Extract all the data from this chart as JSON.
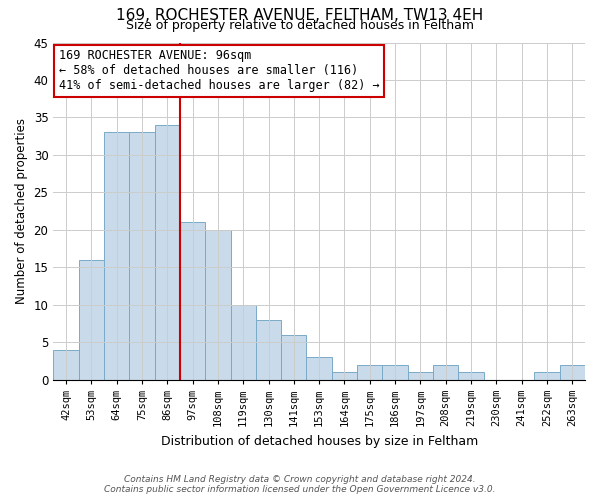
{
  "title": "169, ROCHESTER AVENUE, FELTHAM, TW13 4EH",
  "subtitle": "Size of property relative to detached houses in Feltham",
  "xlabel": "Distribution of detached houses by size in Feltham",
  "ylabel": "Number of detached properties",
  "bar_labels": [
    "42sqm",
    "53sqm",
    "64sqm",
    "75sqm",
    "86sqm",
    "97sqm",
    "108sqm",
    "119sqm",
    "130sqm",
    "141sqm",
    "153sqm",
    "164sqm",
    "175sqm",
    "186sqm",
    "197sqm",
    "208sqm",
    "219sqm",
    "230sqm",
    "241sqm",
    "252sqm",
    "263sqm"
  ],
  "bar_heights": [
    4,
    16,
    33,
    33,
    34,
    21,
    20,
    10,
    8,
    6,
    3,
    1,
    2,
    2,
    1,
    2,
    1,
    0,
    0,
    1,
    2
  ],
  "bar_color": "#c9daea",
  "bar_edge_color": "#7aaac8",
  "vline_color": "#cc0000",
  "annotation_text": "169 ROCHESTER AVENUE: 96sqm\n← 58% of detached houses are smaller (116)\n41% of semi-detached houses are larger (82) →",
  "annotation_box_color": "#ffffff",
  "annotation_box_edge": "#cc0000",
  "ylim": [
    0,
    45
  ],
  "yticks": [
    0,
    5,
    10,
    15,
    20,
    25,
    30,
    35,
    40,
    45
  ],
  "grid_color": "#cccccc",
  "bg_color": "#ffffff",
  "footer_line1": "Contains HM Land Registry data © Crown copyright and database right 2024.",
  "footer_line2": "Contains public sector information licensed under the Open Government Licence v3.0."
}
